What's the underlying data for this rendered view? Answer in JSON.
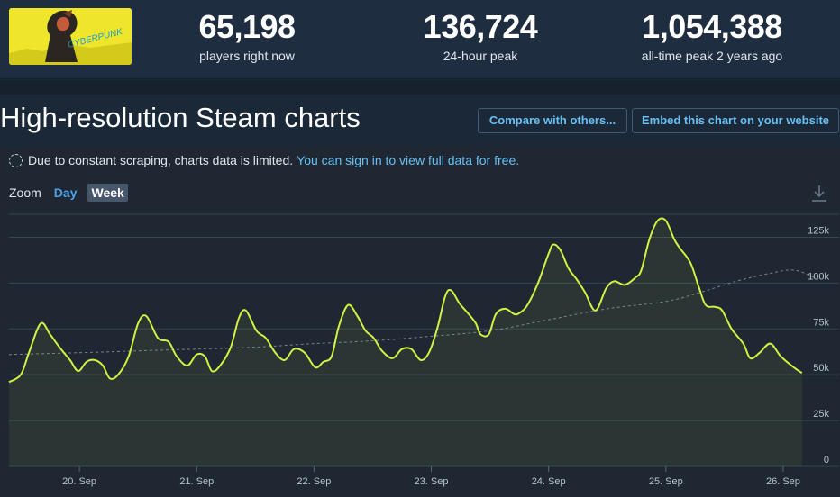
{
  "stats": [
    {
      "value": "65,198",
      "label": "players right now"
    },
    {
      "value": "136,724",
      "label": "24-hour peak"
    },
    {
      "value": "1,054,388",
      "label": "all-time peak 2 years ago"
    }
  ],
  "game_logo_text": "CYBERPUNK",
  "heading": "High-resolution Steam charts",
  "buttons": {
    "compare": "Compare with others...",
    "embed": "Embed this chart on your website"
  },
  "notice": {
    "text": "Due to constant scraping, charts data is limited.",
    "link": "You can sign in to view full data for free."
  },
  "zoom": {
    "label": "Zoom",
    "options": [
      "Day",
      "Week"
    ],
    "selected": "Week"
  },
  "icons": {
    "download": "download-icon",
    "notice": "dashed-circle-icon"
  },
  "colors": {
    "line": "#d2f243",
    "average": "#8a949e",
    "link": "#66c0f4",
    "grid": "#3a4553"
  },
  "chart_data": {
    "type": "line",
    "x_unit": "day (September)",
    "xlim": [
      19.4,
      26.4
    ],
    "ylim": [
      0,
      137500
    ],
    "y_ticks": [
      0,
      25000,
      50000,
      75000,
      100000,
      125000
    ],
    "y_tick_labels": [
      "0",
      "25k",
      "50k",
      "75k",
      "100k",
      "125k"
    ],
    "x_ticks": [
      20,
      21,
      22,
      23,
      24,
      25,
      26
    ],
    "x_tick_labels": [
      "20. Sep",
      "21. Sep",
      "22. Sep",
      "23. Sep",
      "24. Sep",
      "25. Sep",
      "26. Sep"
    ],
    "grid": true,
    "series": [
      {
        "style": "solid",
        "x": [
          19.4,
          19.5,
          19.57,
          19.67,
          19.75,
          19.83,
          19.92,
          19.99,
          20.06,
          20.13,
          20.2,
          20.26,
          20.33,
          20.42,
          20.5,
          20.57,
          20.67,
          20.76,
          20.83,
          20.92,
          21.0,
          21.07,
          21.13,
          21.2,
          21.29,
          21.36,
          21.42,
          21.51,
          21.59,
          21.67,
          21.75,
          21.83,
          21.92,
          22.01,
          22.08,
          22.15,
          22.21,
          22.29,
          22.37,
          22.44,
          22.51,
          22.58,
          22.67,
          22.75,
          22.83,
          22.91,
          22.98,
          23.05,
          23.12,
          23.17,
          23.24,
          23.32,
          23.38,
          23.42,
          23.49,
          23.55,
          23.63,
          23.71,
          23.76,
          23.82,
          23.91,
          24.0,
          24.04,
          24.1,
          24.17,
          24.24,
          24.31,
          24.4,
          24.49,
          24.56,
          24.65,
          24.74,
          24.79,
          24.86,
          24.93,
          25.0,
          25.07,
          25.12,
          25.21,
          25.28,
          25.34,
          25.42,
          25.48,
          25.56,
          25.66,
          25.72,
          25.8,
          25.89,
          25.98,
          26.09,
          26.16
        ],
        "y": [
          46000,
          50000,
          62000,
          78000,
          72000,
          65000,
          58000,
          52000,
          57000,
          58000,
          55000,
          48000,
          50000,
          60000,
          78000,
          82000,
          70000,
          68000,
          60000,
          55000,
          61000,
          60000,
          52000,
          55000,
          65000,
          81000,
          85000,
          74000,
          70000,
          62000,
          58000,
          64000,
          62000,
          54000,
          57000,
          60000,
          76000,
          88000,
          82000,
          74000,
          70000,
          63000,
          59000,
          64000,
          64000,
          58000,
          62000,
          75000,
          93000,
          96000,
          89000,
          83000,
          78000,
          72000,
          72000,
          83000,
          86000,
          83000,
          84000,
          88000,
          100000,
          116000,
          121000,
          118000,
          108000,
          102000,
          95000,
          85000,
          97000,
          101000,
          99000,
          103000,
          107000,
          124000,
          134000,
          134000,
          124000,
          119000,
          111000,
          98000,
          88000,
          87000,
          85000,
          75000,
          67000,
          59000,
          62000,
          67000,
          60000,
          54000,
          51000
        ]
      },
      {
        "style": "dashed",
        "name": "",
        "x": [
          19.4,
          20.0,
          20.5,
          21.0,
          21.5,
          22.0,
          22.5,
          23.0,
          23.5,
          24.0,
          24.5,
          25.0,
          25.3,
          25.6,
          25.9,
          26.1,
          26.3
        ],
        "y": [
          61000,
          62000,
          63000,
          64000,
          65000,
          67000,
          68500,
          71000,
          74000,
          80000,
          86000,
          90000,
          95000,
          101000,
          105500,
          107000,
          102000
        ]
      }
    ]
  }
}
